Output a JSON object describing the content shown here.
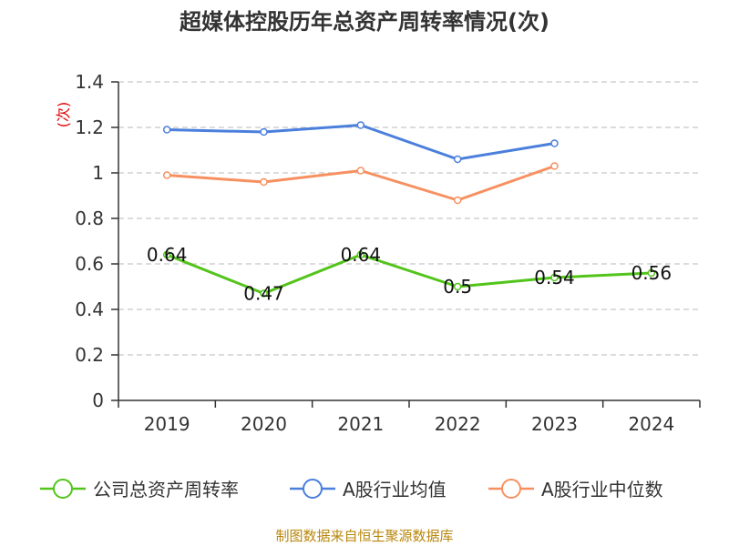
{
  "chart_data": {
    "type": "line",
    "title": "超媒体控股历年总资产周转率情况(次)",
    "ylabel": "(次)",
    "xlabel": "",
    "categories": [
      "2019",
      "2020",
      "2021",
      "2022",
      "2023",
      "2024"
    ],
    "ylim": [
      0,
      1.4
    ],
    "yticks": [
      0,
      0.2,
      0.4,
      0.6,
      0.8,
      1,
      1.2,
      1.4
    ],
    "grid": true,
    "legend_position": "bottom",
    "series": [
      {
        "name": "公司总资产周转率",
        "color": "#52c41a",
        "values": [
          0.64,
          0.47,
          0.64,
          0.5,
          0.54,
          0.56
        ],
        "labels": [
          "0.64",
          "0.47",
          "0.64",
          "0.5",
          "0.54",
          "0.56"
        ]
      },
      {
        "name": "A股行业均值",
        "color": "#4a7fdc",
        "values": [
          1.19,
          1.18,
          1.21,
          1.06,
          1.13,
          null
        ]
      },
      {
        "name": "A股行业中位数",
        "color": "#f79060",
        "values": [
          0.99,
          0.96,
          1.01,
          0.88,
          1.03,
          null
        ]
      }
    ]
  },
  "footer": {
    "source": "制图数据来自恒生聚源数据库"
  }
}
